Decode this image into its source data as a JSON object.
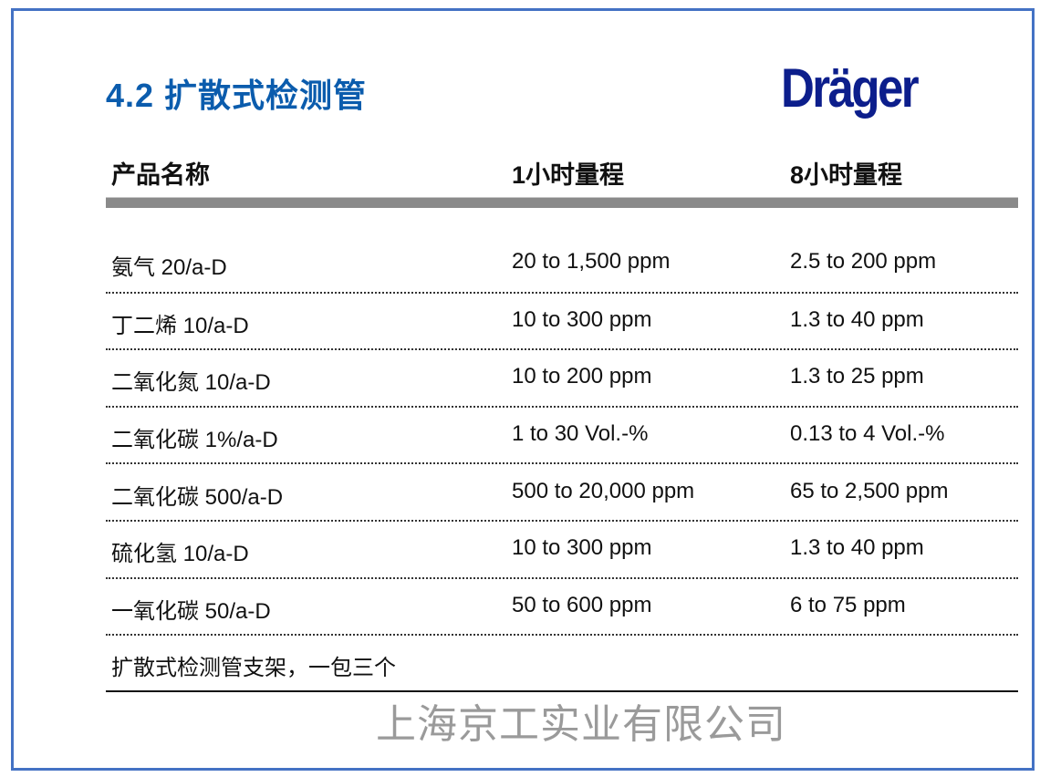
{
  "title": "4.2  扩散式检测管",
  "logo_text": "Dräger",
  "header": [
    "产品名称",
    "1小时量程",
    "8小时量程"
  ],
  "rows": [
    [
      "氨气 20/a-D",
      "20 to 1,500 ppm",
      "2.5 to 200 ppm"
    ],
    [
      "丁二烯 10/a-D",
      "10 to 300 ppm",
      "1.3 to 40 ppm"
    ],
    [
      "二氧化氮 10/a-D",
      "10 to 200 ppm",
      "1.3 to 25 ppm"
    ],
    [
      "二氧化碳 1%/a-D",
      "1 to 30 Vol.-%",
      "0.13 to 4 Vol.-%"
    ],
    [
      "二氧化碳 500/a-D",
      "500 to 20,000 ppm",
      "65 to 2,500 ppm"
    ],
    [
      "硫化氢 10/a-D",
      "10 to 300 ppm",
      "1.3 to 40 ppm"
    ],
    [
      "一氧化碳 50/a-D",
      "50 to 600 ppm",
      "6 to 75 ppm"
    ],
    [
      "扩散式检测管支架，一包三个",
      "",
      ""
    ]
  ],
  "watermark": "上海京工实业有限公司",
  "colors": {
    "title": "#0b5cad",
    "logo": "#0c1e8c",
    "frame": "#4472c4",
    "header_bar": "#8a8a8a"
  }
}
